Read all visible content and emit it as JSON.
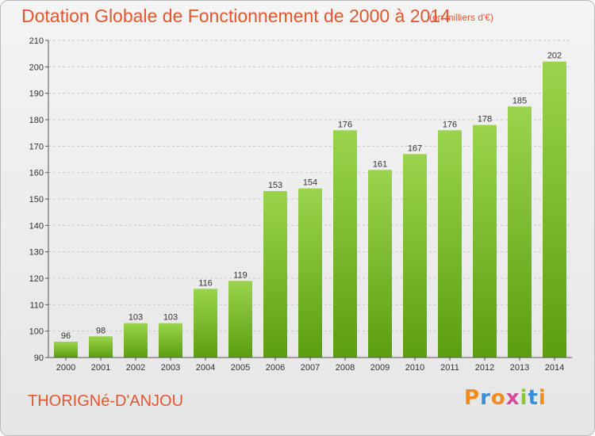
{
  "header": {
    "title": "Dotation Globale de Fonctionnement de 2000 à 2014",
    "unit_note": "(en milliers d'€)"
  },
  "footer": {
    "commune": "THORIGNé-D'ANJOU",
    "brand": "Proxiti",
    "brand_letters": [
      "P",
      "r",
      "o",
      "x",
      "i",
      "t",
      "i"
    ],
    "brand_colors": [
      "#f28c1e",
      "#3a8fd6",
      "#f28c1e",
      "#d84b9c",
      "#8cc63f",
      "#3a8fd6",
      "#f28c1e"
    ]
  },
  "colors": {
    "title": "#e4572e",
    "bar_top": "#9bd44c",
    "bar_bottom": "#5b9e0f",
    "grid": "#c8c8c8",
    "axis": "#555555"
  },
  "chart_data": {
    "type": "bar",
    "title": "Dotation Globale de Fonctionnement de 2000 à 2014",
    "subtitle": "(en milliers d'€)",
    "categories": [
      "2000",
      "2001",
      "2002",
      "2003",
      "2004",
      "2005",
      "2006",
      "2007",
      "2008",
      "2009",
      "2010",
      "2011",
      "2012",
      "2013",
      "2014"
    ],
    "values": [
      96,
      98,
      103,
      103,
      116,
      119,
      153,
      154,
      176,
      161,
      167,
      176,
      178,
      185,
      202
    ],
    "ylim": [
      90,
      210
    ],
    "yticks": [
      90,
      100,
      110,
      120,
      130,
      140,
      150,
      160,
      170,
      180,
      190,
      200,
      210
    ],
    "grid": true,
    "data_labels": true
  }
}
